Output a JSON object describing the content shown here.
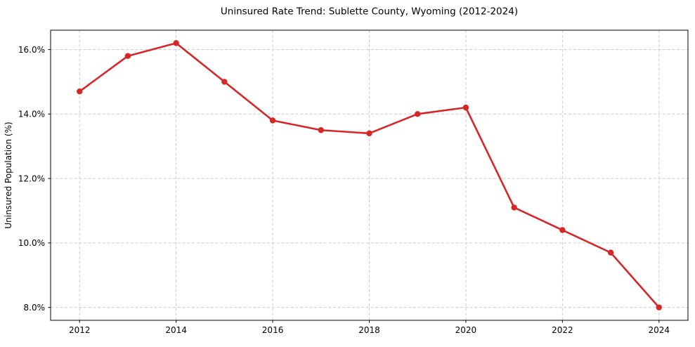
{
  "chart_data": {
    "type": "line",
    "title": "Uninsured Rate Trend: Sublette County, Wyoming (2012-2024)",
    "xlabel": "",
    "ylabel": "Uninsured Population (%)",
    "x": [
      2012,
      2013,
      2014,
      2015,
      2016,
      2017,
      2018,
      2019,
      2020,
      2021,
      2022,
      2023,
      2024
    ],
    "values": [
      14.7,
      15.8,
      16.2,
      15.0,
      13.8,
      13.5,
      13.4,
      14.0,
      14.2,
      11.1,
      10.4,
      9.7,
      8.0
    ],
    "x_tick_values": [
      2012,
      2014,
      2016,
      2018,
      2020,
      2022,
      2024
    ],
    "x_tick_labels": [
      "2012",
      "2014",
      "2016",
      "2018",
      "2020",
      "2022",
      "2024"
    ],
    "y_tick_values": [
      8,
      10,
      12,
      14,
      16
    ],
    "y_tick_labels": [
      "8.0%",
      "10.0%",
      "12.0%",
      "14.0%",
      "16.0%"
    ],
    "xlim": [
      2011.4,
      2024.6
    ],
    "ylim": [
      7.6,
      16.6
    ],
    "grid": true,
    "grid_style": "dashed",
    "legend": false,
    "line_color": "#d62728",
    "marker": "circle",
    "grid_color": "#cccccc",
    "spine_color": "#000000",
    "background_color": "#ffffff"
  }
}
